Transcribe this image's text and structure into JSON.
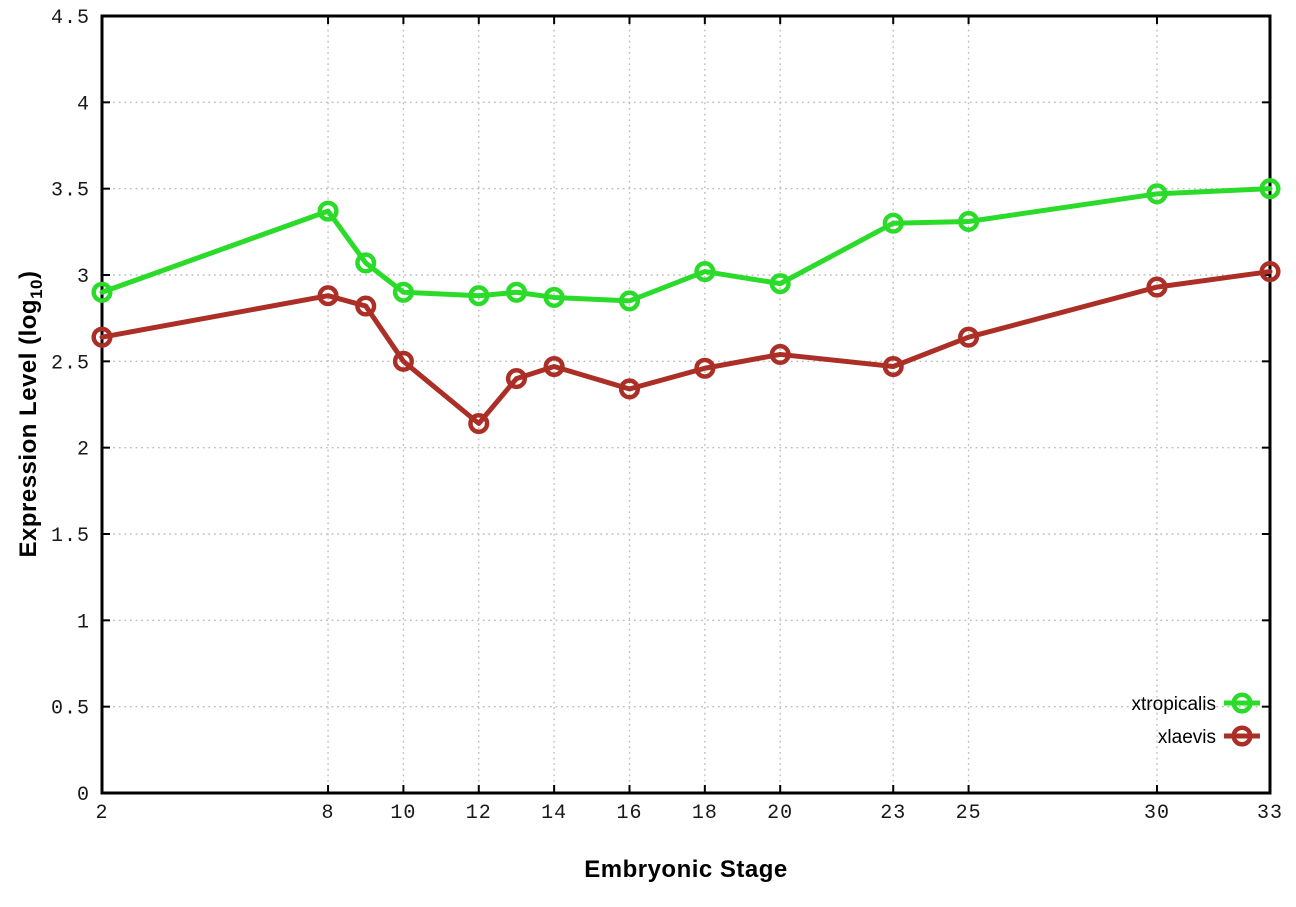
{
  "page": {
    "background": "#ffffff"
  },
  "chart_data": {
    "type": "line",
    "title": "",
    "xlabel": "Embryonic Stage",
    "ylabel": "Expression Level (log10)",
    "ylabel_parts": {
      "pre": "Expression Level (log",
      "sub": "10",
      "post": ")"
    },
    "x": [
      2,
      8,
      9,
      10,
      12,
      13,
      14,
      16,
      18,
      20,
      23,
      25,
      30,
      33
    ],
    "xlim": [
      2,
      33
    ],
    "ylim": [
      0,
      4.5
    ],
    "xticks": [
      2,
      8,
      10,
      12,
      14,
      16,
      18,
      20,
      23,
      25,
      30,
      33
    ],
    "xtick_labels": [
      "2",
      "8",
      "10",
      "12",
      "14",
      "16",
      "18",
      "20",
      "23",
      "25",
      "30",
      "33"
    ],
    "yticks": [
      0,
      0.5,
      1,
      1.5,
      2,
      2.5,
      3,
      3.5,
      4,
      4.5
    ],
    "ytick_labels": [
      "0",
      "0.5",
      "1",
      "1.5",
      "2",
      "2.5",
      "3",
      "3.5",
      "4",
      "4.5"
    ],
    "grid": "dotted",
    "legend_position": "inside-bottom-right",
    "marker": "open-circle",
    "series": [
      {
        "name": "xtropicalis",
        "color": "#2adb2a",
        "values": [
          2.9,
          3.37,
          3.07,
          2.9,
          2.88,
          2.9,
          2.87,
          2.85,
          3.02,
          2.95,
          3.3,
          3.31,
          3.47,
          3.5
        ]
      },
      {
        "name": "xlaevis",
        "color": "#ab2f26",
        "values": [
          2.64,
          2.88,
          2.82,
          2.5,
          2.14,
          2.4,
          2.47,
          2.34,
          2.46,
          2.54,
          2.47,
          2.64,
          2.93,
          3.02
        ]
      }
    ]
  },
  "style": {
    "axis_color": "#000000",
    "grid_color": "#bfbfbf",
    "tick_label_color": "#181818"
  }
}
